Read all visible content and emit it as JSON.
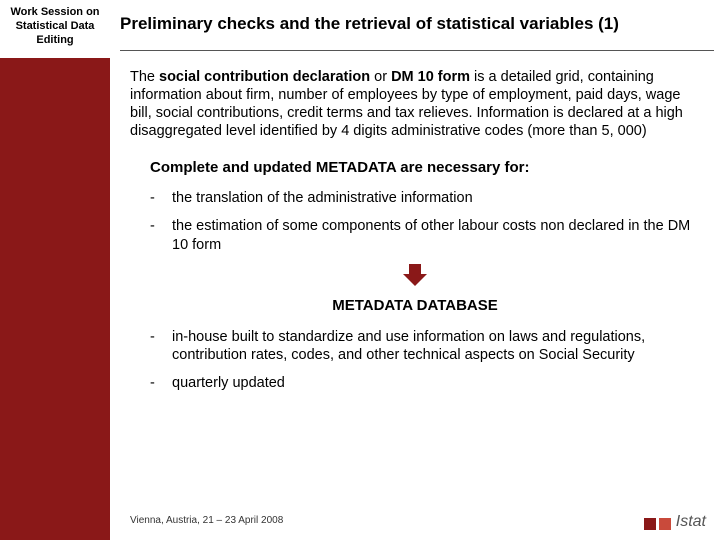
{
  "sidebar": {
    "label": "Work Session on Statistical Data Editing"
  },
  "header": {
    "title": "Preliminary checks and the retrieval of statistical variables (1)"
  },
  "para1": {
    "pre": "The ",
    "bold": "social contribution declaration",
    "mid": " or ",
    "bold2": "DM 10 form",
    "post": " is a detailed grid, containing information about firm, number of employees by type of employment, paid days, wage bill, social contributions, credit terms and tax relieves. Information is declared at a high disaggregated level identified by 4 digits administrative codes (more than 5, 000)"
  },
  "sub1": "Complete and updated METADATA are necessary for:",
  "list1": {
    "i0": "the translation of the administrative information",
    "i1": "the estimation of some components of other labour costs non declared in the DM 10 form"
  },
  "mddb": "METADATA DATABASE",
  "list2": {
    "i0": "in-house built to standardize and use information on laws and regulations, contribution rates, codes, and other technical aspects on Social Security",
    "i1": "quarterly updated"
  },
  "footer": "Vienna, Austria, 21 – 23 April  2008",
  "logo": {
    "text": "Istat"
  },
  "colors": {
    "brand": "#8a1818",
    "brand_light": "#c94a3b",
    "text": "#000000",
    "rule": "#555555",
    "bg": "#ffffff"
  }
}
